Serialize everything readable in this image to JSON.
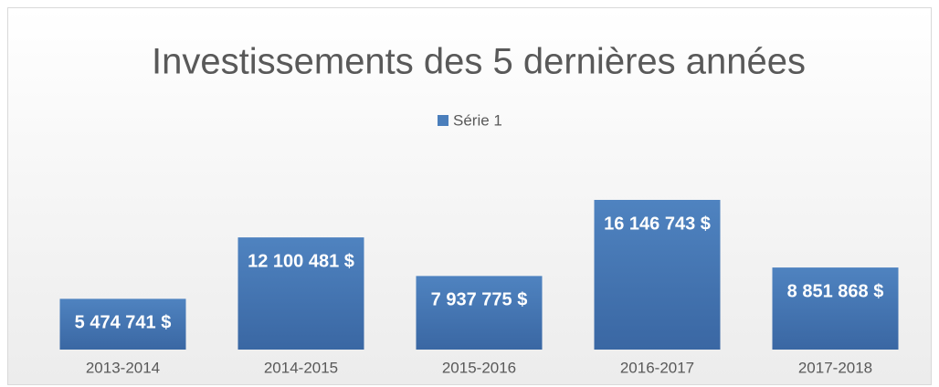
{
  "chart_data": {
    "type": "bar",
    "title": "Investissements des 5 dernières années",
    "categories": [
      "2013-2014",
      "2014-2015",
      "2015-2016",
      "2016-2017",
      "2017-2018"
    ],
    "series": [
      {
        "name": "Série 1",
        "color": "#4a7ebb",
        "values": [
          5474741,
          12100481,
          7937775,
          16146743,
          8851868
        ],
        "value_labels": [
          "5 474 741 $",
          "12 100 481 $",
          "7 937 775 $",
          "16 146 743 $",
          "8 851 868 $"
        ]
      }
    ],
    "legend": "top"
  }
}
